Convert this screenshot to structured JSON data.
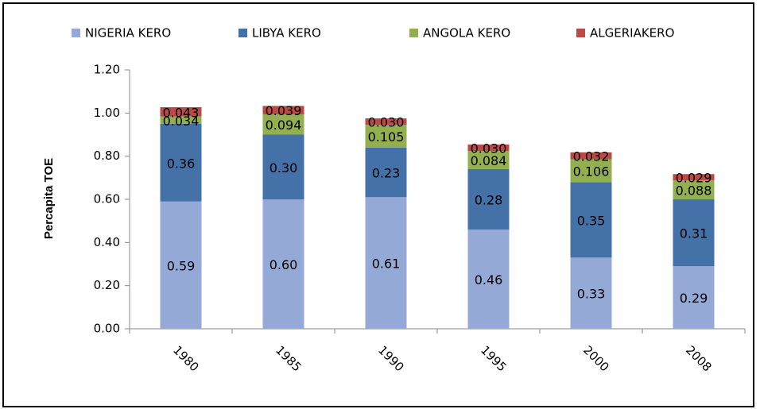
{
  "chart_data": {
    "type": "stacked_bar",
    "y_label": "Percapita TOE",
    "categories": [
      "1980",
      "1985",
      "1990",
      "1995",
      "2000",
      "2008"
    ],
    "series": [
      {
        "name": "NIGERIA KERO",
        "color": "#94a9d5",
        "values": [
          0.59,
          0.6,
          0.61,
          0.46,
          0.33,
          0.29
        ],
        "value_labels": [
          "0.59",
          "0.60",
          "0.61",
          "0.46",
          "0.33",
          "0.29"
        ]
      },
      {
        "name": "LIBYA KERO",
        "color": "#4472a8",
        "values": [
          0.36,
          0.3,
          0.23,
          0.28,
          0.35,
          0.31
        ],
        "value_labels": [
          "0.36",
          "0.30",
          "0.23",
          "0.28",
          "0.35",
          "0.31"
        ]
      },
      {
        "name": "ANGOLA KERO",
        "color": "#92b050",
        "values": [
          0.034,
          0.094,
          0.105,
          0.084,
          0.106,
          0.088
        ],
        "value_labels": [
          "0.034",
          "0.094",
          "0.105",
          "0.084",
          "0.106",
          "0.088"
        ]
      },
      {
        "name": "ALGERIAKERO",
        "color": "#bb4a47",
        "values": [
          0.043,
          0.039,
          0.03,
          0.03,
          0.032,
          0.029
        ],
        "value_labels": [
          "0.043",
          "0.039",
          "0.030",
          "0.030",
          "0.032",
          "0.029"
        ]
      }
    ],
    "ylim": [
      0,
      1.2
    ],
    "yticks": [
      {
        "value": 0,
        "label": "0.00"
      },
      {
        "value": 0.2,
        "label": "0.20"
      },
      {
        "value": 0.4,
        "label": "0.40"
      },
      {
        "value": 0.6,
        "label": "0.60"
      },
      {
        "value": 0.8,
        "label": "0.80"
      },
      {
        "value": 1.0,
        "label": "1.00"
      },
      {
        "value": 1.2,
        "label": "1.20"
      }
    ],
    "legend": "top"
  }
}
